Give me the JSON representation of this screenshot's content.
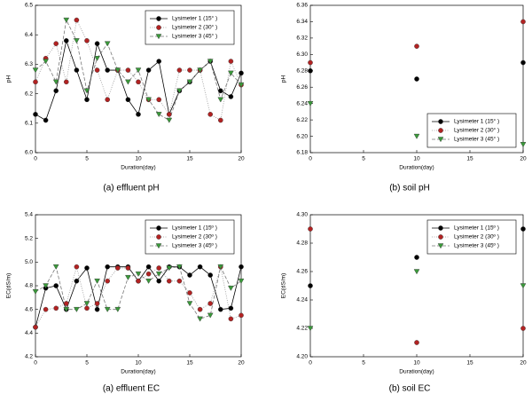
{
  "chart_data": [
    {
      "type": "line",
      "caption": "(a)  effluent pH",
      "xlabel": "Duration(day)",
      "ylabel": "pH",
      "x": [
        0,
        1,
        2,
        3,
        4,
        5,
        6,
        7,
        8,
        9,
        10,
        11,
        12,
        13,
        14,
        15,
        16,
        17,
        18,
        19,
        20
      ],
      "xlim": [
        0,
        20
      ],
      "xticks": [
        0,
        5,
        10,
        15,
        20
      ],
      "ylim": [
        6.0,
        6.5
      ],
      "yticks": [
        {
          "value": 6.0,
          "label": "6.0"
        },
        6.1,
        6.2,
        6.3,
        6.4,
        6.5
      ],
      "legend": "upper right",
      "series": [
        {
          "name": "Lysimeter 1 (15° )",
          "color": "#000000",
          "marker": "circle",
          "line_style": "solid",
          "values": [
            6.13,
            6.11,
            6.21,
            6.38,
            6.28,
            6.18,
            6.37,
            6.28,
            6.28,
            6.18,
            6.13,
            6.28,
            6.31,
            6.13,
            6.21,
            6.24,
            6.28,
            6.31,
            6.21,
            6.19,
            6.27
          ]
        },
        {
          "name": "Lysimeter 2 (30° )",
          "color": "#b22222",
          "marker": "circle",
          "line_style": "dotted",
          "values": [
            6.24,
            6.32,
            6.37,
            6.24,
            6.45,
            6.38,
            6.28,
            6.18,
            6.28,
            6.28,
            6.24,
            6.18,
            6.18,
            6.13,
            6.28,
            6.28,
            6.28,
            6.13,
            6.11,
            6.31,
            6.23
          ]
        },
        {
          "name": "Lysimeter 3 (45° )",
          "color": "#3a9a3a",
          "marker": "triangle-down",
          "line_style": "dashed",
          "values": [
            6.28,
            6.31,
            6.24,
            6.45,
            6.38,
            6.21,
            6.32,
            6.37,
            6.28,
            6.24,
            6.28,
            6.18,
            6.13,
            6.11,
            6.21,
            6.24,
            6.28,
            6.31,
            6.18,
            6.27,
            6.23
          ]
        }
      ]
    },
    {
      "type": "scatter",
      "caption": "(b)  soil pH",
      "xlabel": "Duration(day)",
      "ylabel": "pH",
      "x": [
        0,
        10,
        20
      ],
      "xlim": [
        0,
        20
      ],
      "xticks": [
        0,
        5,
        10,
        15,
        20
      ],
      "ylim": [
        6.18,
        6.36
      ],
      "yticks": [
        6.18,
        {
          "value": 6.2,
          "label": "6.20"
        },
        6.22,
        6.24,
        6.26,
        6.28,
        {
          "value": 6.3,
          "label": "6.30"
        },
        6.32,
        6.34,
        6.36
      ],
      "legend": "lower right",
      "series": [
        {
          "name": "Lysimeter 1 (15° )",
          "color": "#000000",
          "marker": "circle",
          "line_style": "solid",
          "values": [
            6.28,
            6.27,
            6.29
          ]
        },
        {
          "name": "Lysimeter 2 (30° )",
          "color": "#b22222",
          "marker": "circle",
          "line_style": "dotted",
          "values": [
            6.29,
            6.31,
            6.34
          ]
        },
        {
          "name": "Lysimeter 3 (45° )",
          "color": "#3a9a3a",
          "marker": "triangle-down",
          "line_style": "dashed",
          "values": [
            6.24,
            6.2,
            6.19
          ]
        }
      ]
    },
    {
      "type": "line",
      "caption": "(a)  effluent EC",
      "xlabel": "Duration(day)",
      "ylabel": "EC(dS/m)",
      "x": [
        0,
        1,
        2,
        3,
        4,
        5,
        6,
        7,
        8,
        9,
        10,
        11,
        12,
        13,
        14,
        15,
        16,
        17,
        18,
        19,
        20
      ],
      "xlim": [
        0,
        20
      ],
      "xticks": [
        0,
        5,
        10,
        15,
        20
      ],
      "ylim": [
        4.2,
        5.4
      ],
      "yticks": [
        4.2,
        4.4,
        4.6,
        4.8,
        {
          "value": 5.0,
          "label": "5.0"
        },
        5.2,
        5.4
      ],
      "legend": "upper right",
      "series": [
        {
          "name": "Lysimeter 1 (15º )",
          "color": "#000000",
          "marker": "circle",
          "line_style": "solid",
          "values": [
            4.45,
            4.78,
            4.8,
            4.6,
            4.84,
            4.95,
            4.6,
            4.96,
            4.96,
            4.96,
            4.84,
            4.96,
            4.84,
            4.96,
            4.96,
            4.89,
            4.96,
            4.89,
            4.6,
            4.61,
            4.96
          ]
        },
        {
          "name": "Lysimeter 2 (30º )",
          "color": "#b22222",
          "marker": "circle",
          "line_style": "dotted",
          "values": [
            4.45,
            4.6,
            4.61,
            4.65,
            4.96,
            4.61,
            4.65,
            4.84,
            4.95,
            4.95,
            4.84,
            4.9,
            4.95,
            4.84,
            4.84,
            4.74,
            4.6,
            4.65,
            4.96,
            4.52,
            4.55
          ]
        },
        {
          "name": "Lysimeter 3 (45º )",
          "color": "#3a9a3a",
          "marker": "triangle-down",
          "line_style": "dashed",
          "values": [
            4.75,
            4.8,
            4.96,
            4.6,
            4.6,
            4.65,
            4.84,
            4.6,
            4.6,
            4.87,
            4.9,
            4.84,
            4.9,
            4.95,
            4.96,
            4.65,
            4.52,
            4.55,
            4.96,
            4.78,
            4.84
          ]
        }
      ]
    },
    {
      "type": "scatter",
      "caption": "(b)  soil EC",
      "xlabel": "Duration(day)",
      "ylabel": "EC(dS/m)",
      "x": [
        0,
        10,
        20
      ],
      "xlim": [
        0,
        20
      ],
      "xticks": [
        0,
        5,
        10,
        15,
        20
      ],
      "ylim": [
        4.2,
        4.3
      ],
      "yticks": [
        {
          "value": 4.2,
          "label": "4.20"
        },
        4.22,
        4.24,
        4.26,
        4.28,
        {
          "value": 4.3,
          "label": "4.30"
        }
      ],
      "legend": "upper right",
      "series": [
        {
          "name": "Lysimeter 1 (15º )",
          "color": "#000000",
          "marker": "circle",
          "line_style": "solid",
          "values": [
            4.25,
            4.27,
            4.29
          ]
        },
        {
          "name": "Lysimeter 2 (30º )",
          "color": "#b22222",
          "marker": "circle",
          "line_style": "dotted",
          "values": [
            4.29,
            4.21,
            4.22
          ]
        },
        {
          "name": "Lysimeter 3 (45º )",
          "color": "#3a9a3a",
          "marker": "triangle-down",
          "line_style": "dashed",
          "values": [
            4.22,
            4.26,
            4.25
          ]
        }
      ]
    }
  ]
}
